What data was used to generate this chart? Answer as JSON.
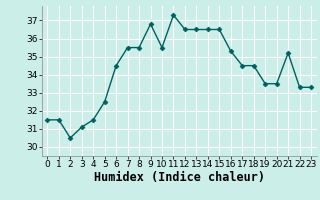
{
  "x": [
    0,
    1,
    2,
    3,
    4,
    5,
    6,
    7,
    8,
    9,
    10,
    11,
    12,
    13,
    14,
    15,
    16,
    17,
    18,
    19,
    20,
    21,
    22,
    23
  ],
  "y": [
    31.5,
    31.5,
    30.5,
    31.1,
    31.5,
    32.5,
    34.5,
    35.5,
    35.5,
    36.8,
    35.5,
    37.3,
    36.5,
    36.5,
    36.5,
    36.5,
    35.3,
    34.5,
    34.5,
    33.5,
    33.5,
    35.2,
    33.3,
    33.3
  ],
  "line_color": "#006060",
  "marker": "D",
  "marker_size": 2.5,
  "line_width": 1.0,
  "xlabel": "Humidex (Indice chaleur)",
  "ylim": [
    29.5,
    37.8
  ],
  "xlim": [
    -0.5,
    23.5
  ],
  "yticks": [
    30,
    31,
    32,
    33,
    34,
    35,
    36,
    37
  ],
  "xticks": [
    0,
    1,
    2,
    3,
    4,
    5,
    6,
    7,
    8,
    9,
    10,
    11,
    12,
    13,
    14,
    15,
    16,
    17,
    18,
    19,
    20,
    21,
    22,
    23
  ],
  "bg_color": "#cceee8",
  "grid_color": "#ffffff",
  "tick_fontsize": 6.5,
  "xlabel_fontsize": 8.5
}
